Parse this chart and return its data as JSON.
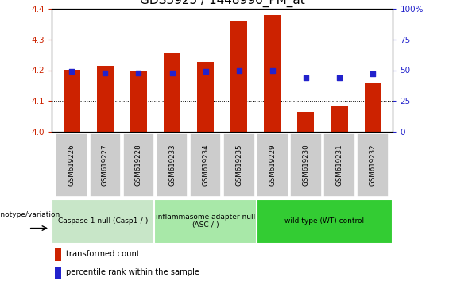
{
  "title": "GDS3925 / 1448996_PM_at",
  "samples": [
    "GSM619226",
    "GSM619227",
    "GSM619228",
    "GSM619233",
    "GSM619234",
    "GSM619235",
    "GSM619229",
    "GSM619230",
    "GSM619231",
    "GSM619232"
  ],
  "red_values": [
    4.202,
    4.213,
    4.2,
    4.256,
    4.228,
    4.36,
    4.378,
    4.065,
    4.082,
    4.16
  ],
  "blue_values": [
    49,
    48,
    48,
    48,
    49,
    50,
    50,
    44,
    44,
    47
  ],
  "ylim": [
    4.0,
    4.4
  ],
  "y2lim": [
    0,
    100
  ],
  "yticks": [
    4.0,
    4.1,
    4.2,
    4.3,
    4.4
  ],
  "y2ticks": [
    0,
    25,
    50,
    75,
    100
  ],
  "red_color": "#cc2200",
  "blue_color": "#2222cc",
  "bar_bottom": 4.0,
  "groups": [
    {
      "label": "Caspase 1 null (Casp1-/-)",
      "start": 0,
      "end": 3,
      "color": "#c8e6c8"
    },
    {
      "label": "inflammasome adapter null\n(ASC-/-)",
      "start": 3,
      "end": 6,
      "color": "#a8e8a8"
    },
    {
      "label": "wild type (WT) control",
      "start": 6,
      "end": 10,
      "color": "#33cc33"
    }
  ],
  "legend_red": "transformed count",
  "legend_blue": "percentile rank within the sample",
  "genotype_label": "genotype/variation",
  "title_fontsize": 11,
  "tick_fontsize": 7.5,
  "bar_width": 0.5,
  "blue_size": 20,
  "sample_box_color": "#cccccc",
  "sample_box_edge": "#999999"
}
